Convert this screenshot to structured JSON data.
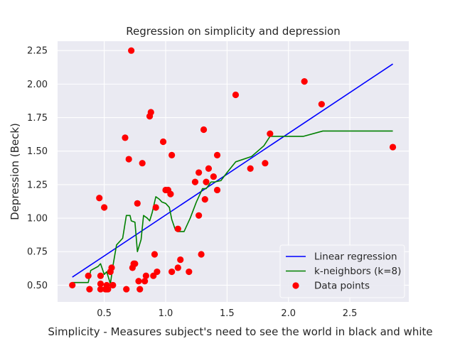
{
  "chart_data": {
    "type": "scatter",
    "title": "Regression on simplicity and depression",
    "xlabel": "Simplicity - Measures subject's need to see the world in black and white",
    "ylabel": "Depression (Beck)",
    "xlim": [
      0.12,
      2.98
    ],
    "ylim": [
      0.375,
      2.32
    ],
    "xticks": [
      0.5,
      1.0,
      1.5,
      2.0,
      2.5
    ],
    "xtick_labels": [
      "0.5",
      "1.0",
      "1.5",
      "2.0",
      "2.5"
    ],
    "yticks": [
      0.5,
      0.75,
      1.0,
      1.25,
      1.5,
      1.75,
      2.0,
      2.25
    ],
    "ytick_labels": [
      "0.50",
      "0.75",
      "1.00",
      "1.25",
      "1.50",
      "1.75",
      "2.00",
      "2.25"
    ],
    "grid": true,
    "legend_position": "lower-right",
    "colors": {
      "background": "#eaeaf2",
      "grid": "#ffffff",
      "linear": "#0000ff",
      "knn": "#008000",
      "points": "#ff0000"
    },
    "series": [
      {
        "name": "Linear regression",
        "kind": "line",
        "x": [
          0.24,
          2.85
        ],
        "y": [
          0.56,
          2.15
        ]
      },
      {
        "name": "k-neighbors (k=8)",
        "kind": "line",
        "x": [
          0.24,
          0.37,
          0.39,
          0.45,
          0.47,
          0.5,
          0.52,
          0.55,
          0.57,
          0.6,
          0.65,
          0.68,
          0.71,
          0.72,
          0.75,
          0.77,
          0.8,
          0.82,
          0.85,
          0.87,
          0.89,
          0.92,
          0.95,
          0.97,
          1.0,
          1.03,
          1.05,
          1.08,
          1.1,
          1.15,
          1.2,
          1.25,
          1.3,
          1.33,
          1.37,
          1.4,
          1.45,
          1.5,
          1.57,
          1.7,
          1.8,
          1.85,
          1.9,
          2.0,
          2.12,
          2.28,
          2.85
        ],
        "y": [
          0.52,
          0.52,
          0.61,
          0.64,
          0.66,
          0.58,
          0.6,
          0.51,
          0.64,
          0.8,
          0.85,
          1.02,
          1.02,
          0.98,
          0.97,
          0.75,
          0.84,
          1.02,
          1.0,
          0.98,
          1.04,
          1.16,
          1.14,
          1.12,
          1.11,
          1.08,
          0.99,
          0.91,
          0.9,
          0.9,
          1.0,
          1.12,
          1.22,
          1.22,
          1.27,
          1.27,
          1.28,
          1.34,
          1.42,
          1.46,
          1.54,
          1.61,
          1.61,
          1.61,
          1.61,
          1.65,
          1.65
        ]
      },
      {
        "name": "Data points",
        "kind": "scatter",
        "x": [
          0.24,
          0.37,
          0.38,
          0.46,
          0.47,
          0.47,
          0.47,
          0.5,
          0.51,
          0.52,
          0.52,
          0.53,
          0.55,
          0.56,
          0.57,
          0.57,
          0.67,
          0.68,
          0.7,
          0.72,
          0.73,
          0.74,
          0.75,
          0.77,
          0.78,
          0.79,
          0.81,
          0.83,
          0.84,
          0.87,
          0.88,
          0.9,
          0.91,
          0.92,
          0.93,
          0.98,
          1.0,
          1.02,
          1.04,
          1.05,
          1.05,
          1.1,
          1.1,
          1.12,
          1.19,
          1.24,
          1.27,
          1.27,
          1.29,
          1.31,
          1.32,
          1.33,
          1.35,
          1.39,
          1.42,
          1.42,
          1.57,
          1.69,
          1.81,
          1.85,
          2.13,
          2.27,
          2.85
        ],
        "y": [
          0.5,
          0.57,
          0.47,
          1.15,
          0.47,
          0.51,
          0.57,
          1.08,
          0.47,
          0.5,
          0.47,
          0.47,
          0.6,
          0.63,
          0.5,
          0.5,
          1.6,
          0.47,
          1.44,
          2.25,
          0.63,
          0.66,
          0.66,
          1.11,
          0.53,
          0.47,
          1.41,
          0.53,
          0.57,
          1.76,
          1.79,
          0.57,
          0.73,
          1.08,
          0.6,
          1.57,
          1.21,
          1.21,
          1.18,
          0.6,
          1.47,
          0.92,
          0.63,
          0.69,
          0.6,
          1.27,
          1.02,
          1.34,
          0.73,
          1.66,
          1.14,
          1.27,
          1.37,
          1.31,
          1.21,
          1.47,
          1.92,
          1.37,
          1.41,
          1.63,
          2.02,
          1.85,
          1.53
        ]
      }
    ]
  }
}
